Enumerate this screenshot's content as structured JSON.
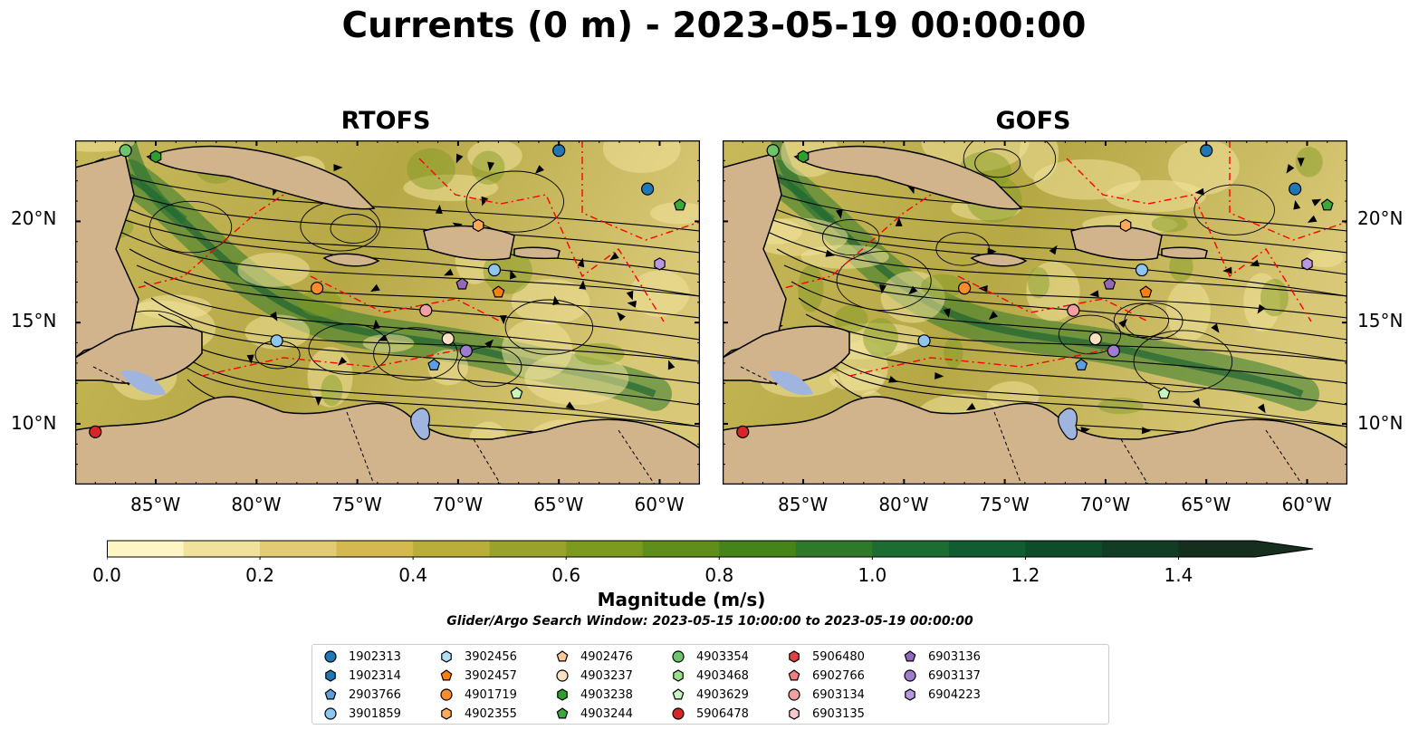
{
  "title": "Currents (0 m) - 2023-05-19 00:00:00",
  "panels": [
    {
      "name": "RTOFS"
    },
    {
      "name": "GOFS"
    }
  ],
  "lon_ticks": [
    "85°W",
    "80°W",
    "75°W",
    "70°W",
    "65°W",
    "60°W"
  ],
  "lat_ticks": [
    "20°N",
    "15°N",
    "10°N"
  ],
  "colorbar": {
    "label": "Magnitude (m/s)",
    "ticks": [
      "0.0",
      "0.2",
      "0.4",
      "0.6",
      "0.8",
      "1.0",
      "1.2",
      "1.4"
    ],
    "range": [
      0,
      1.5
    ],
    "extend": "max",
    "colors": [
      "#fdf6c4",
      "#f1e29b",
      "#e2cb72",
      "#d4b850",
      "#b9ae3a",
      "#99a22a",
      "#7c9a1e",
      "#5f8e1a",
      "#448419",
      "#2f7a2a",
      "#1d6c31",
      "#115c31",
      "#0d4d2a",
      "#113d24",
      "#162e1d"
    ]
  },
  "search_window": "Glider/Argo Search Window: 2023-05-15 10:00:00 to 2023-05-19 00:00:00",
  "colors": {
    "land": "#d2b48c",
    "coast": "#000000",
    "eez": "#ff0000",
    "lakes": "#a0b4e0"
  },
  "map_extent": {
    "lon": [
      -89,
      -58
    ],
    "lat": [
      7,
      24
    ]
  },
  "legend": [
    {
      "id": "1902313",
      "marker": "circle",
      "color": "#1f77b4"
    },
    {
      "id": "1902314",
      "marker": "hexagon",
      "color": "#1f77b4"
    },
    {
      "id": "2903766",
      "marker": "pentagon",
      "color": "#5aa0e0"
    },
    {
      "id": "3901859",
      "marker": "circle",
      "color": "#8ec6f0"
    },
    {
      "id": "3902456",
      "marker": "hexagon",
      "color": "#aee0f8"
    },
    {
      "id": "3902457",
      "marker": "pentagon",
      "color": "#ff7f0e"
    },
    {
      "id": "4901719",
      "marker": "circle",
      "color": "#ff8c2a"
    },
    {
      "id": "4902355",
      "marker": "hexagon",
      "color": "#ffa95a"
    },
    {
      "id": "4902476",
      "marker": "pentagon",
      "color": "#ffc896"
    },
    {
      "id": "4903237",
      "marker": "circle",
      "color": "#ffe0c0"
    },
    {
      "id": "4903238",
      "marker": "hexagon",
      "color": "#2ca02c"
    },
    {
      "id": "4903244",
      "marker": "pentagon",
      "color": "#3aa83a"
    },
    {
      "id": "4903354",
      "marker": "circle",
      "color": "#6cc46c"
    },
    {
      "id": "4903468",
      "marker": "hexagon",
      "color": "#98df8a"
    },
    {
      "id": "4903629",
      "marker": "pentagon",
      "color": "#c8f4c0"
    },
    {
      "id": "5906478",
      "marker": "circle",
      "color": "#d62728"
    },
    {
      "id": "5906480",
      "marker": "hexagon",
      "color": "#e04040"
    },
    {
      "id": "6902766",
      "marker": "pentagon",
      "color": "#f08080"
    },
    {
      "id": "6903134",
      "marker": "circle",
      "color": "#f4a0a0"
    },
    {
      "id": "6903135",
      "marker": "hexagon",
      "color": "#f8c8c8"
    },
    {
      "id": "6903136",
      "marker": "pentagon",
      "color": "#9467bd"
    },
    {
      "id": "6903137",
      "marker": "circle",
      "color": "#a07cd0"
    },
    {
      "id": "6904223",
      "marker": "hexagon",
      "color": "#b898e0"
    }
  ],
  "floats": [
    {
      "id": "4903354",
      "lon": -86.5,
      "lat": 23.5
    },
    {
      "id": "4903238",
      "lon": -85.0,
      "lat": 23.2
    },
    {
      "id": "1902313",
      "lon": -65.0,
      "lat": 23.5
    },
    {
      "id": "1902313",
      "lon": -60.6,
      "lat": 21.6
    },
    {
      "id": "4903244",
      "lon": -59.0,
      "lat": 20.8
    },
    {
      "id": "4902355",
      "lon": -69.0,
      "lat": 19.8
    },
    {
      "id": "6904223",
      "lon": -60.0,
      "lat": 17.9
    },
    {
      "id": "3901859",
      "lon": -68.2,
      "lat": 17.6
    },
    {
      "id": "4901719",
      "lon": -77.0,
      "lat": 16.7
    },
    {
      "id": "3902457",
      "lon": -68.0,
      "lat": 16.5
    },
    {
      "id": "6903136",
      "lon": -69.8,
      "lat": 16.9
    },
    {
      "id": "6903134",
      "lon": -71.6,
      "lat": 15.6
    },
    {
      "id": "3901859",
      "lon": -79.0,
      "lat": 14.1
    },
    {
      "id": "4903237",
      "lon": -70.5,
      "lat": 14.2
    },
    {
      "id": "6903137",
      "lon": -69.6,
      "lat": 13.6
    },
    {
      "id": "2903766",
      "lon": -71.2,
      "lat": 12.9
    },
    {
      "id": "4903629",
      "lon": -67.1,
      "lat": 11.5
    },
    {
      "id": "5906478",
      "lon": -88.0,
      "lat": 9.6
    }
  ]
}
